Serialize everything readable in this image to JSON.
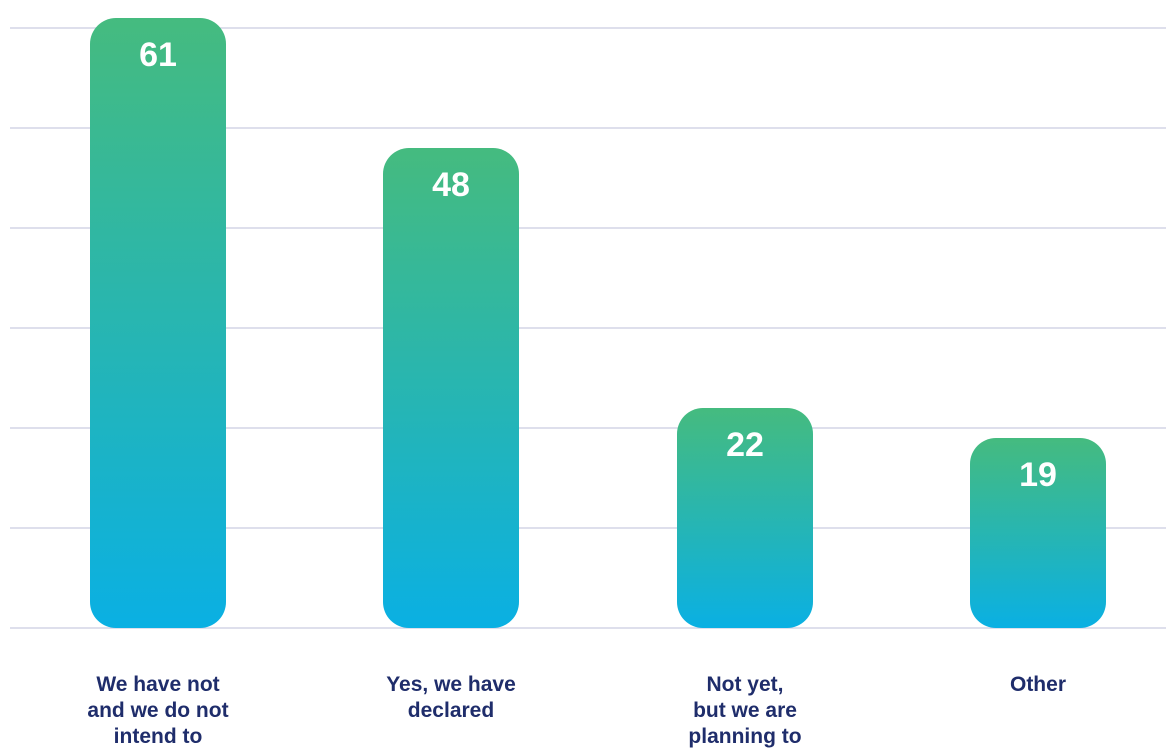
{
  "chart_data": {
    "type": "bar",
    "categories": [
      [
        "We have not",
        "and we do not",
        "intend to"
      ],
      [
        "Yes, we have",
        "declared"
      ],
      [
        "Not yet,",
        "but we are",
        "planning to"
      ],
      [
        "Other"
      ]
    ],
    "values": [
      61,
      48,
      22,
      19
    ],
    "value_labels": [
      "61",
      "48",
      "22",
      "19"
    ],
    "ylim": [
      0,
      60
    ],
    "grid": true,
    "legend": "none",
    "colors": {
      "bar_top": "#45bb7f",
      "bar_bottom": "#0ab0e3",
      "grid": "#c9cce0",
      "value_text": "#ffffff",
      "category_text": "#1f2d6b"
    }
  }
}
